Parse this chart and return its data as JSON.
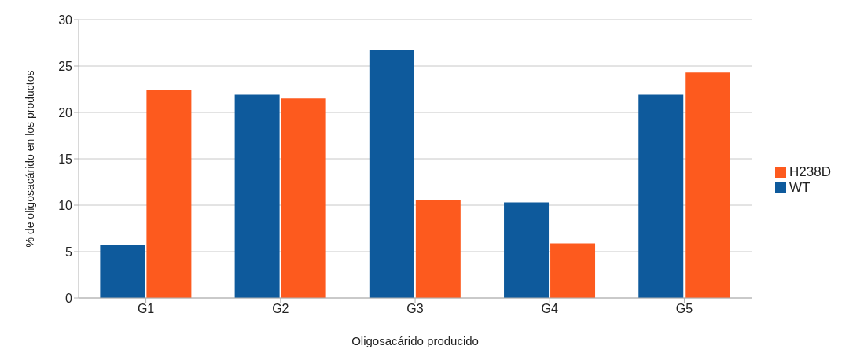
{
  "chart_data": {
    "type": "bar",
    "xlabel": "Oligosacárido  producido",
    "ylabel": "% de oligosacárido en los productos",
    "categories": [
      "G1",
      "G2",
      "G3",
      "G4",
      "G5"
    ],
    "series": [
      {
        "name": "WT",
        "color": "#0e5a9c",
        "values": [
          5.7,
          21.9,
          26.7,
          10.3,
          21.9
        ]
      },
      {
        "name": "H238D",
        "color": "#fd5a1e",
        "values": [
          22.4,
          21.5,
          10.5,
          5.9,
          24.3
        ]
      }
    ],
    "ylim": [
      0,
      30
    ],
    "yticks": [
      0,
      5,
      10,
      15,
      20,
      25,
      30
    ],
    "grid": "y",
    "legend": "right"
  }
}
